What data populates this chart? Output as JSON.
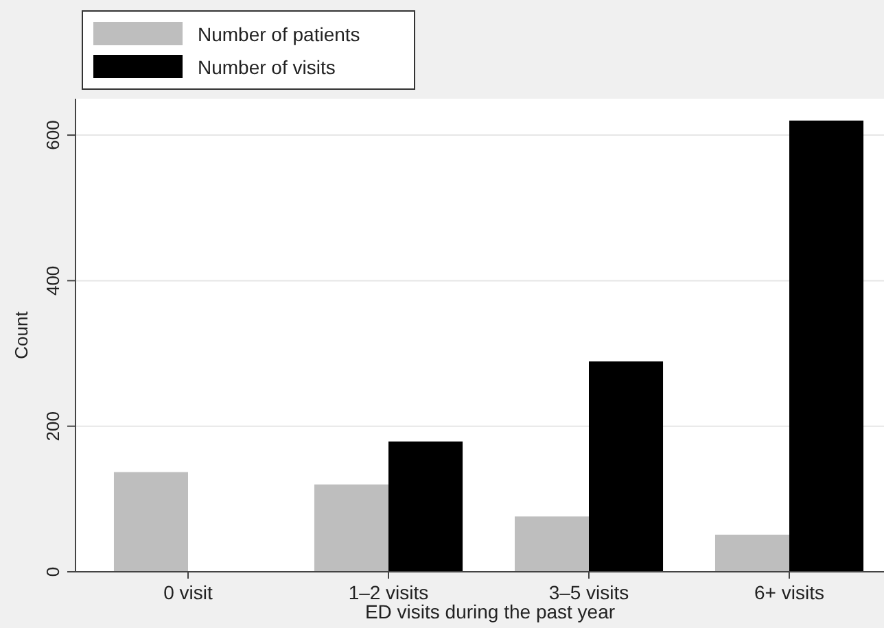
{
  "chart_data": {
    "type": "bar",
    "xlabel": "ED visits during the past year",
    "ylabel": "Count",
    "categories": [
      "0 visit",
      "1–2 visits",
      "3–5 visits",
      "6+ visits"
    ],
    "series": [
      {
        "name": "Number of patients",
        "color": "#bebebe",
        "values": [
          137,
          120,
          76,
          51
        ]
      },
      {
        "name": "Number of visits",
        "color": "#000000",
        "values": [
          0,
          179,
          289,
          620
        ]
      }
    ],
    "ylim": [
      0,
      650
    ],
    "yticks": [
      0,
      200,
      400,
      600
    ],
    "grid": "y",
    "legend": "top left"
  }
}
